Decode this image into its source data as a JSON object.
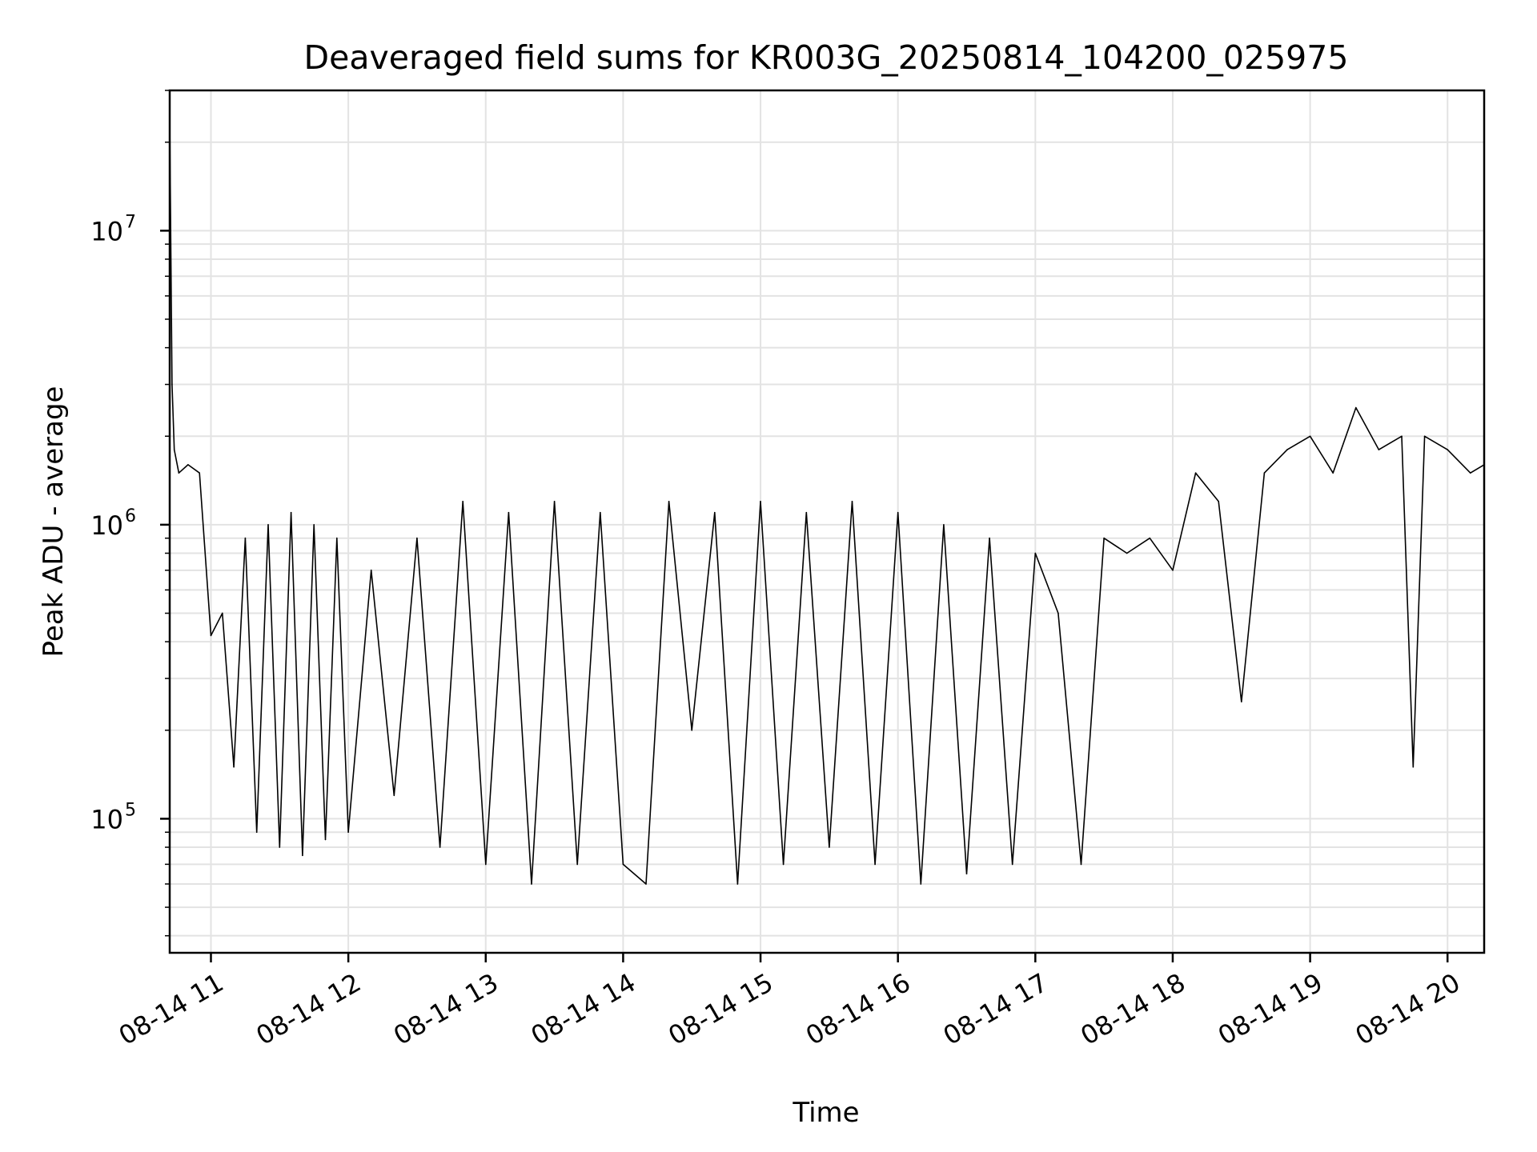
{
  "chart_data": {
    "type": "line",
    "title": "Deaveraged field sums for KR003G_20250814_104200_025975",
    "xlabel": "Time",
    "ylabel": "Peak ADU - average",
    "x_ticks": [
      "08-14 11",
      "08-14 12",
      "08-14 13",
      "08-14 14",
      "08-14 15",
      "08-14 16",
      "08-14 17",
      "08-14 18",
      "08-14 19",
      "08-14 20"
    ],
    "y_ticks": [
      {
        "base": "10",
        "exp": "5",
        "value": 100000
      },
      {
        "base": "10",
        "exp": "6",
        "value": 1000000
      },
      {
        "base": "10",
        "exp": "7",
        "value": 10000000
      }
    ],
    "xlim": [
      "2025-08-14 10:42",
      "2025-08-14 20:16"
    ],
    "ylim": [
      35000,
      30000000
    ],
    "yscale": "log",
    "grid": true,
    "line_color": "#000000",
    "series": [
      {
        "x": [
          "10:42",
          "10:43",
          "10:44",
          "10:46",
          "10:50",
          "10:55",
          "11:00",
          "11:05",
          "11:10",
          "11:15",
          "11:20",
          "11:25",
          "11:30",
          "11:35",
          "11:40",
          "11:45",
          "11:50",
          "11:55",
          "12:00",
          "12:10",
          "12:20",
          "12:30",
          "12:40",
          "12:50",
          "13:00",
          "13:10",
          "13:20",
          "13:30",
          "13:40",
          "13:50",
          "14:00",
          "14:10",
          "14:20",
          "14:30",
          "14:40",
          "14:50",
          "15:00",
          "15:10",
          "15:20",
          "15:30",
          "15:40",
          "15:50",
          "16:00",
          "16:10",
          "16:20",
          "16:30",
          "16:40",
          "16:50",
          "17:00",
          "17:10",
          "17:20",
          "17:30",
          "17:40",
          "17:50",
          "18:00",
          "18:10",
          "18:20",
          "18:30",
          "18:40",
          "18:50",
          "19:00",
          "19:10",
          "19:20",
          "19:30",
          "19:40",
          "19:45",
          "19:50",
          "20:00",
          "20:10",
          "20:16"
        ],
        "y": [
          24000000,
          3000000,
          1800000,
          1500000,
          1600000,
          1500000,
          420000,
          500000,
          150000,
          900000,
          90000,
          1000000,
          80000,
          1100000,
          75000,
          1000000,
          85000,
          900000,
          90000,
          700000,
          120000,
          900000,
          80000,
          1200000,
          70000,
          1100000,
          60000,
          1200000,
          70000,
          1100000,
          70000,
          60000,
          1200000,
          200000,
          1100000,
          60000,
          1200000,
          70000,
          1100000,
          80000,
          1200000,
          70000,
          1100000,
          60000,
          1000000,
          65000,
          900000,
          70000,
          800000,
          500000,
          70000,
          900000,
          800000,
          900000,
          700000,
          1500000,
          1200000,
          250000,
          1500000,
          1800000,
          2000000,
          1500000,
          2500000,
          1800000,
          2000000,
          150000,
          2000000,
          1800000,
          1500000,
          1600000
        ]
      }
    ]
  }
}
